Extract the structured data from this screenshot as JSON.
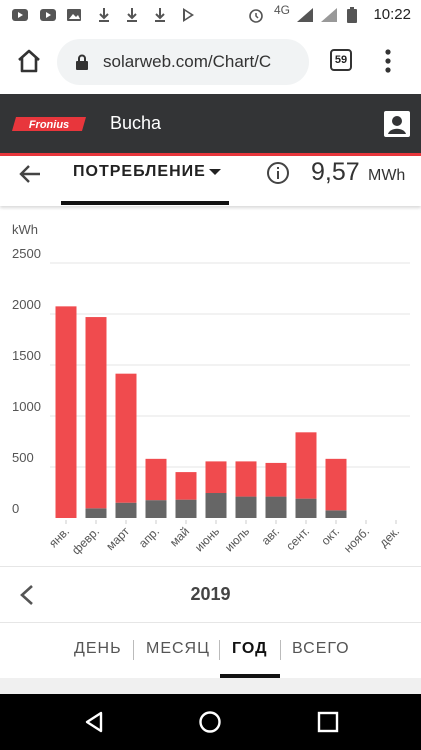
{
  "status_bar": {
    "network": "4G",
    "time": "10:22"
  },
  "browser": {
    "url": "solarweb.com/Chart/C",
    "tab_count": "59"
  },
  "app": {
    "brand": "Fronius",
    "title": "Bucha"
  },
  "view": {
    "selector_label": "ПОТРЕБЛЕНИЕ",
    "total_value": "9,57",
    "total_unit": "MWh"
  },
  "chart_data": {
    "type": "bar",
    "ylabel": "kWh",
    "ylim": [
      0,
      2500
    ],
    "yticks": [
      "0",
      "500",
      "1000",
      "1500",
      "2000",
      "2500"
    ],
    "categories": [
      "янв.",
      "февр.",
      "март",
      "апр.",
      "май",
      "июнь",
      "июль",
      "авг.",
      "сент.",
      "окт.",
      "нояб.",
      "дек."
    ],
    "stacked": true,
    "series": [
      {
        "name": "",
        "color": "#666666",
        "values": [
          0,
          95,
          150,
          175,
          180,
          245,
          210,
          210,
          190,
          75,
          0,
          0
        ]
      },
      {
        "name": "",
        "color": "#f04b4e",
        "values": [
          2075,
          1875,
          1265,
          405,
          270,
          310,
          345,
          330,
          650,
          505,
          0,
          0
        ]
      }
    ],
    "grid": true
  },
  "year_nav": {
    "year": "2019"
  },
  "period_tabs": [
    {
      "label": "ДЕНЬ",
      "active": false
    },
    {
      "label": "МЕСЯЦ",
      "active": false
    },
    {
      "label": "ГОД",
      "active": true
    },
    {
      "label": "ВСЕГО",
      "active": false
    }
  ]
}
